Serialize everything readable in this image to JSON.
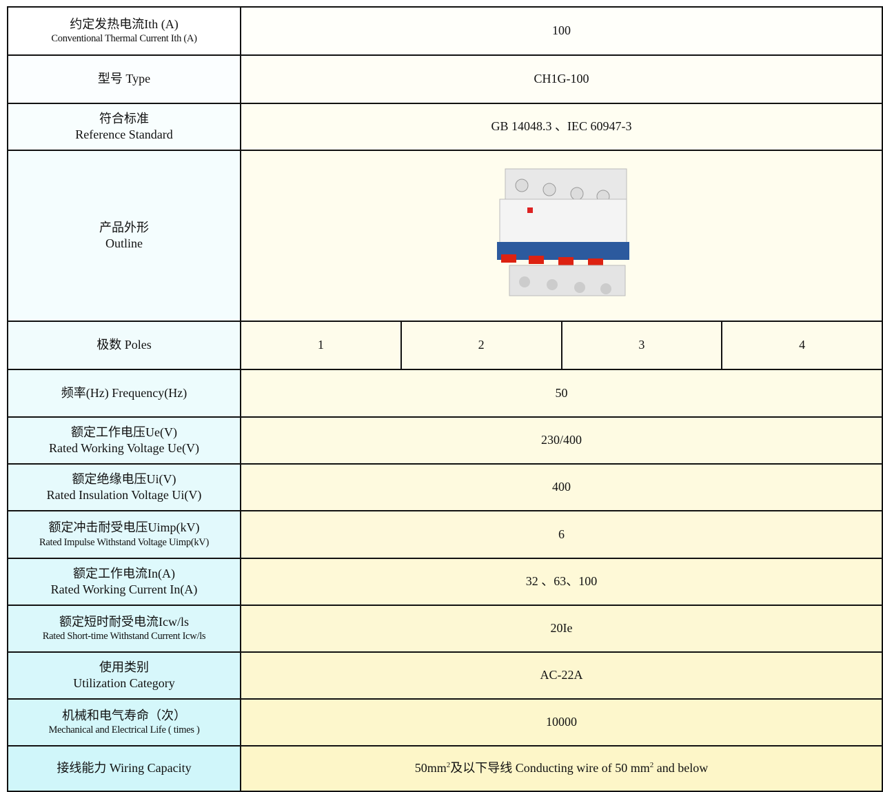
{
  "table": {
    "rows": [
      {
        "label": [
          "约定发热电流Ith (A)",
          "Conventional Thermal Current Ith (A)"
        ],
        "value": "100"
      },
      {
        "label": [
          "型号  Type"
        ],
        "value": "CH1G-100"
      },
      {
        "label": [
          "符合标准",
          "Reference Standard"
        ],
        "value": "GB 14048.3 、IEC 60947-3"
      },
      {
        "label": [
          "产品外形",
          "Outline"
        ]
      },
      {
        "label": [
          "极数  Poles"
        ],
        "values": [
          "1",
          "2",
          "3",
          "4"
        ]
      },
      {
        "label": [
          "频率(Hz)   Frequency(Hz)"
        ],
        "value": "50"
      },
      {
        "label": [
          "额定工作电压Ue(V)",
          "Rated Working Voltage Ue(V)"
        ],
        "value": "230/400"
      },
      {
        "label": [
          "额定绝缘电压Ui(V)",
          "Rated Insulation Voltage Ui(V)"
        ],
        "value": "400"
      },
      {
        "label": [
          "额定冲击耐受电压Uimp(kV)",
          "Rated Impulse Withstand Voltage Uimp(kV)"
        ],
        "value": "6"
      },
      {
        "label": [
          "额定工作电流In(A)",
          "Rated Working Current In(A)"
        ],
        "value": "32 、63、100"
      },
      {
        "label": [
          "额定短时耐受电流Icw/ls",
          "Rated Short-time Withstand Current Icw/ls"
        ],
        "value": "20Ie"
      },
      {
        "label": [
          "使用类别",
          "Utilization Category"
        ],
        "value": "AC-22A"
      },
      {
        "label": [
          "机械和电气寿命（次）",
          "Mechanical and Electrical Life ( times )"
        ],
        "value": "10000"
      },
      {
        "label": [
          "接线能力 Wiring Capacity"
        ],
        "value": [
          "50mm",
          "2",
          "及以下导线  Conducting wire of 50 mm",
          "2",
          " and below"
        ]
      }
    ]
  }
}
